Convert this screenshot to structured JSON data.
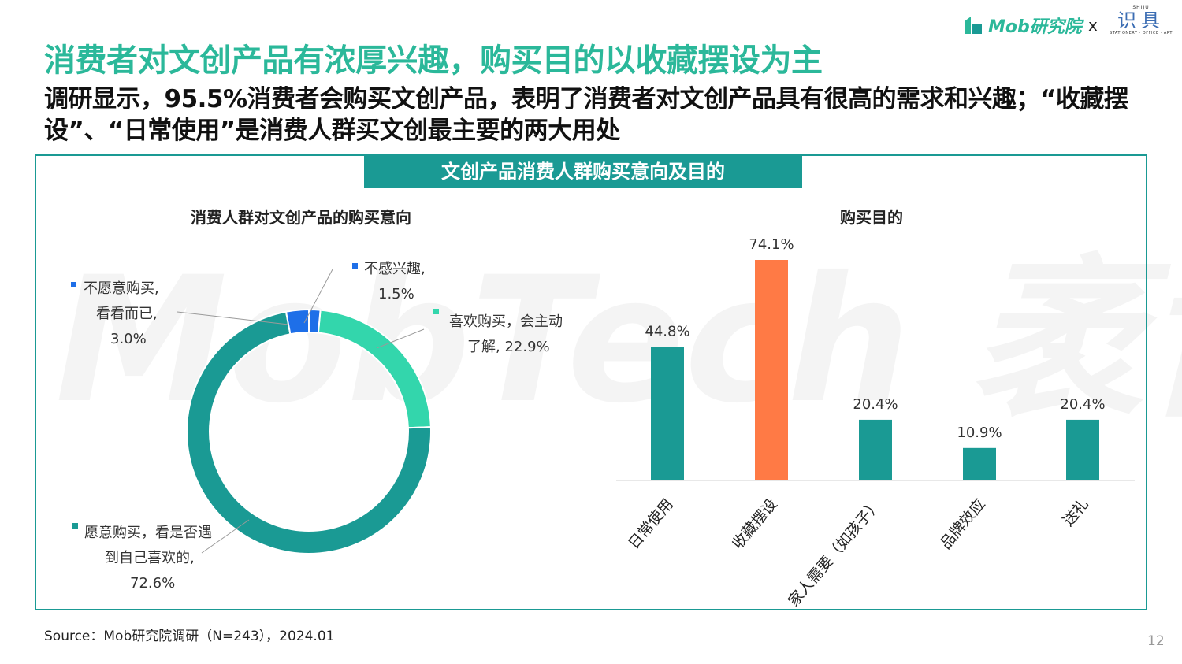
{
  "header": {
    "title": "消费者对文创产品有浓厚兴趣，购买目的以收藏摆设为主",
    "subtitle": "调研显示，95.5%消费者会购买文创产品，表明了消费者对文创产品具有很高的需求和兴趣；“收藏摆设”、“日常使用”是消费人群买文创最主要的两大用处"
  },
  "logos": {
    "mob": "Mob研究院",
    "x": "x",
    "partner_top": "SHIJU",
    "partner_main": "识具",
    "partner_sub": "STATIONERY · OFFICE · ART"
  },
  "watermark": "MobTech 袤博",
  "banner": "文创产品消费人群购买意向及目的",
  "source": "Source：Mob研究院调研（N=243），2024.01",
  "page_number": "12",
  "colors": {
    "accent": "#2bb89a",
    "teal": "#1a9a94",
    "mint": "#33d6ac",
    "blue": "#1e6fe8",
    "orange": "#ff7a45",
    "grid": "#d9d9d9"
  },
  "chart_data": [
    {
      "type": "pie",
      "title": "消费人群对文创产品的购买意向",
      "donut": true,
      "slices": [
        {
          "label_lines": [
            "喜欢购买，会主动",
            "了解, 22.9%"
          ],
          "value": 22.9,
          "color": "#33d6ac"
        },
        {
          "label_lines": [
            "愿意购买，看是否遇",
            "到自己喜欢的,",
            "72.6%"
          ],
          "value": 72.6,
          "color": "#1a9a94"
        },
        {
          "label_lines": [
            "不愿意购买,",
            "看看而已,",
            "3.0%"
          ],
          "value": 3.0,
          "color": "#1e6fe8"
        },
        {
          "label_lines": [
            "不感兴趣,",
            "1.5%"
          ],
          "value": 1.5,
          "color": "#1e6fe8"
        }
      ]
    },
    {
      "type": "bar",
      "title": "购买目的",
      "categories": [
        "日常使用",
        "收藏摆设",
        "家人需要（如孩子）",
        "品牌效应",
        "送礼"
      ],
      "values": [
        44.8,
        74.1,
        20.4,
        10.9,
        20.4
      ],
      "value_labels": [
        "44.8%",
        "74.1%",
        "20.4%",
        "10.9%",
        "20.4%"
      ],
      "colors": [
        "#1a9a94",
        "#ff7a45",
        "#1a9a94",
        "#1a9a94",
        "#1a9a94"
      ],
      "ylim": [
        0,
        80
      ],
      "grid": false
    }
  ]
}
